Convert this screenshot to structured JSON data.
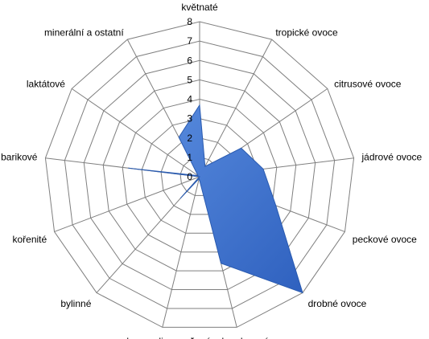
{
  "chart_data": {
    "type": "radar",
    "title": "",
    "categories": [
      "květnaté",
      "tropické ovoce",
      "citrusové ovoce",
      "jádrové ovoce",
      "peckové ovoce",
      "drobné ovoce",
      "sušené a kandované ovoce",
      "karamelizované",
      "bylinné",
      "kořenité",
      "barikové",
      "laktátové",
      "minerální a ostatní"
    ],
    "series": [
      {
        "name": "",
        "values": [
          3.7,
          0.6,
          2.6,
          3.3,
          4.2,
          8.0,
          4.6,
          0.1,
          1.5,
          0.0,
          3.7,
          0.1,
          2.3
        ]
      }
    ],
    "rlim": [
      0,
      8
    ],
    "ticks": [
      "0",
      "1",
      "2",
      "3",
      "4",
      "5",
      "6",
      "7",
      "8"
    ],
    "grid": true,
    "legend": "none",
    "colors": {
      "series_fill": "#4a7bd1",
      "series_stroke": "#2a5bb0",
      "grid": "#7f7f7f"
    }
  }
}
